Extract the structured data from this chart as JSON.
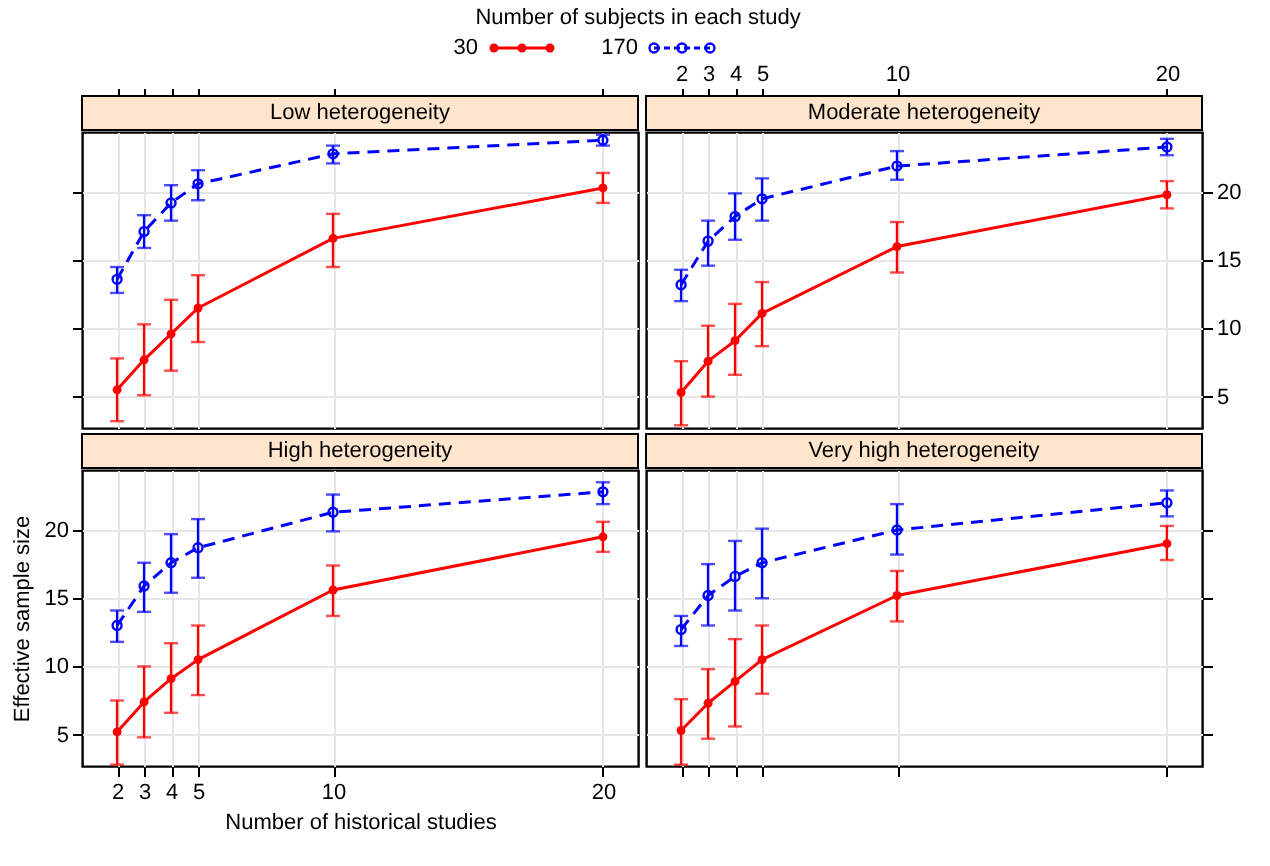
{
  "chart_data": [
    {
      "type": "line",
      "title": "Low heterogeneity",
      "x": [
        2,
        3,
        4,
        5,
        10,
        20
      ],
      "xlim": [
        0.7,
        21.3
      ],
      "xticks": [
        2,
        3,
        4,
        5,
        10,
        20
      ],
      "ylim": [
        2.7,
        24.4
      ],
      "yticks": [
        5,
        10,
        15,
        20
      ],
      "grid": true,
      "tick_labels": false,
      "legend": "top",
      "legend_title": "Number of subjects in each study",
      "marker": "circle",
      "series": [
        {
          "name": "30",
          "color": "#ff0000",
          "line_style": "solid",
          "values": [
            5.5,
            7.7,
            9.6,
            11.5,
            16.6,
            20.3
          ],
          "errors": [
            [
              3.2,
              7.8
            ],
            [
              5.1,
              10.3
            ],
            [
              6.9,
              12.1
            ],
            [
              9.0,
              13.9
            ],
            [
              14.5,
              18.4
            ],
            [
              19.2,
              21.4
            ]
          ]
        },
        {
          "name": "170",
          "color": "#0000ff",
          "line_style": "dashed",
          "values": [
            13.6,
            17.1,
            19.2,
            20.6,
            22.8,
            23.8
          ],
          "errors": [
            [
              12.6,
              14.5
            ],
            [
              15.9,
              18.3
            ],
            [
              17.9,
              20.5
            ],
            [
              19.4,
              21.6
            ],
            [
              22.1,
              23.4
            ],
            [
              23.4,
              24.2
            ]
          ]
        }
      ]
    },
    {
      "type": "line",
      "title": "Moderate heterogeneity",
      "x": [
        2,
        3,
        4,
        5,
        10,
        20
      ],
      "xlim": [
        0.7,
        21.3
      ],
      "xticks": [
        2,
        3,
        4,
        5,
        10,
        20
      ],
      "ylim": [
        2.7,
        24.4
      ],
      "yticks": [
        5,
        10,
        15,
        20
      ],
      "grid": true,
      "marker": "circle",
      "series": [
        {
          "color": "#ff0000",
          "line_style": "solid",
          "values": [
            5.3,
            7.6,
            9.1,
            11.1,
            16.0,
            19.8
          ],
          "errors": [
            [
              2.9,
              7.6
            ],
            [
              5.0,
              10.2
            ],
            [
              6.6,
              11.8
            ],
            [
              8.7,
              13.4
            ],
            [
              14.1,
              17.8
            ],
            [
              18.8,
              20.8
            ]
          ]
        },
        {
          "color": "#0000ff",
          "line_style": "dashed",
          "values": [
            13.2,
            16.4,
            18.2,
            19.5,
            21.9,
            23.3
          ],
          "errors": [
            [
              12.0,
              14.3
            ],
            [
              14.6,
              17.9
            ],
            [
              16.5,
              19.9
            ],
            [
              17.9,
              21.0
            ],
            [
              20.9,
              23.0
            ],
            [
              22.7,
              23.9
            ]
          ]
        }
      ]
    },
    {
      "type": "line",
      "title": "High heterogeneity",
      "xlabel": "Number of historical studies",
      "ylabel": "Effective sample size",
      "x": [
        2,
        3,
        4,
        5,
        10,
        20
      ],
      "xlim": [
        0.7,
        21.3
      ],
      "xticks": [
        2,
        3,
        4,
        5,
        10,
        20
      ],
      "ylim": [
        2.7,
        24.4
      ],
      "yticks": [
        5,
        10,
        15,
        20
      ],
      "grid": true,
      "marker": "circle",
      "series": [
        {
          "color": "#ff0000",
          "line_style": "solid",
          "values": [
            5.2,
            7.4,
            9.1,
            10.5,
            15.6,
            19.5
          ],
          "errors": [
            [
              2.8,
              7.5
            ],
            [
              4.8,
              10.0
            ],
            [
              6.6,
              11.7
            ],
            [
              7.9,
              13.0
            ],
            [
              13.7,
              17.4
            ],
            [
              18.4,
              20.6
            ]
          ]
        },
        {
          "color": "#0000ff",
          "line_style": "dashed",
          "values": [
            13.0,
            15.9,
            17.6,
            18.7,
            21.3,
            22.8
          ],
          "errors": [
            [
              11.8,
              14.1
            ],
            [
              14.0,
              17.6
            ],
            [
              15.4,
              19.7
            ],
            [
              16.5,
              20.8
            ],
            [
              19.9,
              22.6
            ],
            [
              21.9,
              23.5
            ]
          ]
        }
      ]
    },
    {
      "type": "line",
      "title": "Very high heterogeneity",
      "x": [
        2,
        3,
        4,
        5,
        10,
        20
      ],
      "xlim": [
        0.7,
        21.3
      ],
      "xticks": [
        2,
        3,
        4,
        5,
        10,
        20
      ],
      "ylim": [
        2.7,
        24.4
      ],
      "yticks": [
        5,
        10,
        15,
        20
      ],
      "grid": true,
      "tick_labels": false,
      "marker": "circle",
      "series": [
        {
          "color": "#ff0000",
          "line_style": "solid",
          "values": [
            5.3,
            7.3,
            8.9,
            10.5,
            15.2,
            19.0
          ],
          "errors": [
            [
              2.8,
              7.6
            ],
            [
              4.7,
              9.8
            ],
            [
              5.6,
              12.0
            ],
            [
              8.0,
              13.0
            ],
            [
              13.3,
              17.0
            ],
            [
              17.8,
              20.3
            ]
          ]
        },
        {
          "color": "#0000ff",
          "line_style": "dashed",
          "values": [
            12.7,
            15.2,
            16.6,
            17.6,
            20.0,
            22.0
          ],
          "errors": [
            [
              11.5,
              13.7
            ],
            [
              13.0,
              17.5
            ],
            [
              14.1,
              19.2
            ],
            [
              15.0,
              20.1
            ],
            [
              18.2,
              21.9
            ],
            [
              21.0,
              22.9
            ]
          ]
        }
      ]
    }
  ]
}
